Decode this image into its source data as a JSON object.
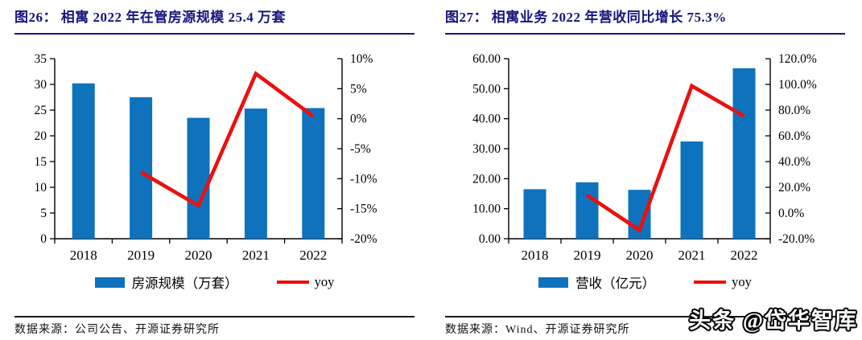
{
  "colors": {
    "bar": "#0e72bd",
    "line": "#ed0f0f",
    "title": "#16157f",
    "axis": "#000000",
    "footer_rule": "#1a1a1a"
  },
  "watermark": {
    "text": "头条 @岱华智库"
  },
  "panels": [
    {
      "title": "图26： 相寓 2022 年在管房源规模 25.4 万套",
      "legend_bar": "房源规模（万套）",
      "legend_line": "yoy",
      "source": "数据来源：公司公告、开源证券研究所"
    },
    {
      "title": "图27： 相寓业务 2022 年营收同比增长 75.3%",
      "legend_bar": "营收（亿元）",
      "legend_line": "yoy",
      "source": "数据来源：Wind、开源证券研究所"
    }
  ],
  "chart_data": [
    {
      "type": "bar",
      "title": "相寓 2022 年在管房源规模 25.4 万套",
      "categories": [
        "2018",
        "2019",
        "2020",
        "2021",
        "2022"
      ],
      "series": [
        {
          "name": "房源规模（万套）",
          "kind": "bar",
          "axis": "left",
          "values": [
            30.2,
            27.5,
            23.5,
            25.3,
            25.4
          ]
        },
        {
          "name": "yoy",
          "kind": "line",
          "axis": "right",
          "values": [
            null,
            -8.9,
            -14.5,
            7.5,
            0.4
          ]
        }
      ],
      "left_axis": {
        "min": 0,
        "max": 35,
        "step": 5,
        "decimals": 0,
        "suffix": ""
      },
      "right_axis": {
        "min": -20,
        "max": 10,
        "step": 5,
        "decimals": 0,
        "suffix": "%"
      },
      "legend_position": "bottom",
      "grid": false
    },
    {
      "type": "bar",
      "title": "相寓业务 2022 年营收同比增长 75.3%",
      "categories": [
        "2018",
        "2019",
        "2020",
        "2021",
        "2022"
      ],
      "series": [
        {
          "name": "营收（亿元）",
          "kind": "bar",
          "axis": "left",
          "values": [
            16.5,
            18.8,
            16.3,
            32.4,
            56.8
          ]
        },
        {
          "name": "yoy",
          "kind": "line",
          "axis": "right",
          "values": [
            null,
            13.9,
            -13.3,
            98.8,
            75.3
          ]
        }
      ],
      "left_axis": {
        "min": 0,
        "max": 60,
        "step": 10,
        "decimals": 2,
        "suffix": ""
      },
      "right_axis": {
        "min": -20,
        "max": 120,
        "step": 20,
        "decimals": 1,
        "suffix": "%"
      },
      "legend_position": "bottom",
      "grid": false
    }
  ]
}
